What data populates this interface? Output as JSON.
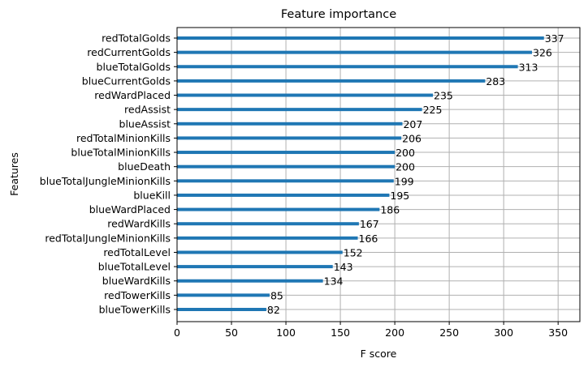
{
  "chart_data": {
    "type": "bar",
    "orientation": "horizontal",
    "title": "Feature importance",
    "xlabel": "F score",
    "ylabel": "Features",
    "xlim": [
      0,
      370
    ],
    "xticks": [
      0,
      50,
      100,
      150,
      200,
      250,
      300,
      350
    ],
    "grid": true,
    "bar_color": "#1f77b4",
    "categories": [
      "redTotalGolds",
      "redCurrentGolds",
      "blueTotalGolds",
      "blueCurrentGolds",
      "redWardPlaced",
      "redAssist",
      "blueAssist",
      "redTotalMinionKills",
      "blueTotalMinionKills",
      "blueDeath",
      "blueTotalJungleMinionKills",
      "blueKill",
      "blueWardPlaced",
      "redWardKills",
      "redTotalJungleMinionKills",
      "redTotalLevel",
      "blueTotalLevel",
      "blueWardKills",
      "redTowerKills",
      "blueTowerKills"
    ],
    "values": [
      337,
      326,
      313,
      283,
      235,
      225,
      207,
      206,
      200,
      200,
      199,
      195,
      186,
      167,
      166,
      152,
      143,
      134,
      85,
      82
    ]
  }
}
